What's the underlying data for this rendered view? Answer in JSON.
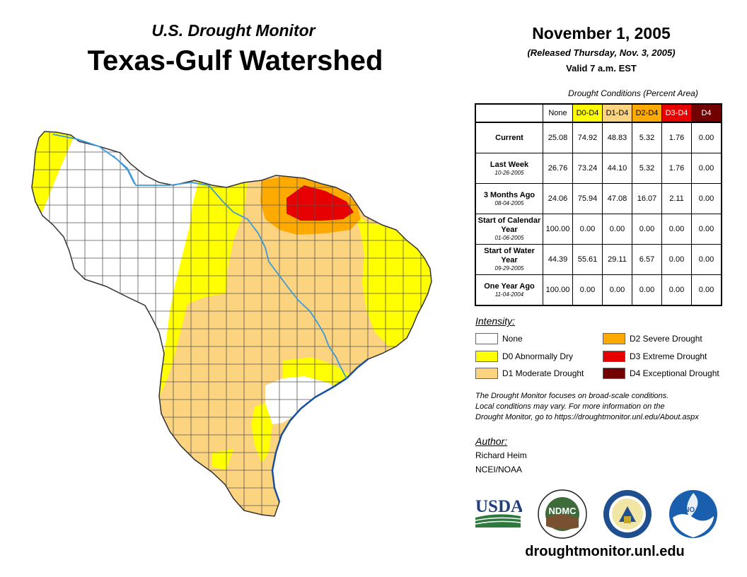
{
  "header": {
    "subtitle": "U.S. Drought Monitor",
    "title": "Texas-Gulf Watershed",
    "date": "November 1, 2005",
    "released": "(Released Thursday, Nov. 3, 2005)",
    "valid": "Valid 7 a.m. EST"
  },
  "table": {
    "caption": "Drought Conditions (Percent Area)",
    "columns": [
      "None",
      "D0-D4",
      "D1-D4",
      "D2-D4",
      "D3-D4",
      "D4"
    ],
    "column_colors": [
      "#ffffff",
      "#ffff00",
      "#fcd37f",
      "#ffaa00",
      "#e60000",
      "#730000"
    ],
    "rows": [
      {
        "label": "Current",
        "date": "",
        "values": [
          "25.08",
          "74.92",
          "48.83",
          "5.32",
          "1.76",
          "0.00"
        ]
      },
      {
        "label": "Last Week",
        "date": "10-26-2005",
        "values": [
          "26.76",
          "73.24",
          "44.10",
          "5.32",
          "1.76",
          "0.00"
        ]
      },
      {
        "label": "3 Months Ago",
        "date": "08-04-2005",
        "values": [
          "24.06",
          "75.94",
          "47.08",
          "16.07",
          "2.11",
          "0.00"
        ]
      },
      {
        "label": "Start of Calendar Year",
        "date": "01-06-2005",
        "values": [
          "100.00",
          "0.00",
          "0.00",
          "0.00",
          "0.00",
          "0.00"
        ]
      },
      {
        "label": "Start of Water Year",
        "date": "09-29-2005",
        "values": [
          "44.39",
          "55.61",
          "29.11",
          "6.57",
          "0.00",
          "0.00"
        ]
      },
      {
        "label": "One Year Ago",
        "date": "11-04-2004",
        "values": [
          "100.00",
          "0.00",
          "0.00",
          "0.00",
          "0.00",
          "0.00"
        ]
      }
    ]
  },
  "legend": {
    "title": "Intensity:",
    "items": [
      {
        "label": "None",
        "color": "#ffffff"
      },
      {
        "label": "D0 Abnormally Dry",
        "color": "#ffff00"
      },
      {
        "label": "D1 Moderate Drought",
        "color": "#fcd37f"
      },
      {
        "label": "D2 Severe Drought",
        "color": "#ffaa00"
      },
      {
        "label": "D3 Extreme Drought",
        "color": "#e60000"
      },
      {
        "label": "D4 Exceptional Drought",
        "color": "#730000"
      }
    ]
  },
  "note": {
    "line1": "The Drought Monitor focuses on broad-scale conditions.",
    "line2": "Local conditions may vary. For more information on the",
    "line3": "Drought Monitor, go to https://droughtmonitor.unl.edu/About.aspx"
  },
  "author": {
    "label": "Author:",
    "name": "Richard Heim",
    "org": "NCEI/NOAA"
  },
  "logos": {
    "usda": "USDA",
    "ndmc": "NDMC",
    "noaa": "NOAA"
  },
  "footer": {
    "url": "droughtmonitor.unl.edu"
  },
  "colors": {
    "none": "#ffffff",
    "d0": "#ffff00",
    "d1": "#fcd37f",
    "d2": "#ffaa00",
    "d3": "#e60000",
    "d4": "#730000",
    "river": "#3a9ad9",
    "gulf_coast": "#1a4fa0"
  }
}
